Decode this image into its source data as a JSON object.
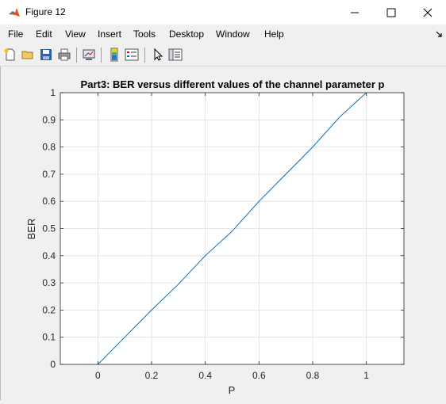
{
  "window": {
    "title": "Figure 12"
  },
  "menu": {
    "items": [
      "File",
      "Edit",
      "View",
      "Insert",
      "Tools",
      "Desktop",
      "Window",
      "Help"
    ]
  },
  "toolbar": {
    "icons": [
      "new-figure-icon",
      "open-file-icon",
      "save-icon",
      "print-icon",
      "link-plot-icon",
      "insert-colorbar-icon",
      "insert-legend-icon",
      "edit-plot-icon",
      "property-inspector-icon"
    ]
  },
  "chart_data": {
    "type": "line",
    "title": "Part3: BER versus different values of the channel parameter p",
    "xlabel": "P",
    "ylabel": "BER",
    "xlim": [
      -0.14,
      1.14
    ],
    "ylim": [
      0,
      1
    ],
    "xticks": [
      "0",
      "0.2",
      "0.4",
      "0.6",
      "0.8",
      "1"
    ],
    "yticks": [
      "0",
      "0.1",
      "0.2",
      "0.3",
      "0.4",
      "0.5",
      "0.6",
      "0.7",
      "0.8",
      "0.9",
      "1"
    ],
    "grid": true,
    "series": [
      {
        "color": "#0072bd",
        "x": [
          0,
          0.1,
          0.2,
          0.3,
          0.4,
          0.5,
          0.6,
          0.7,
          0.8,
          0.9,
          1.0
        ],
        "y": [
          0,
          0.1,
          0.2,
          0.295,
          0.4,
          0.49,
          0.6,
          0.7,
          0.8,
          0.91,
          1.0
        ]
      }
    ]
  }
}
